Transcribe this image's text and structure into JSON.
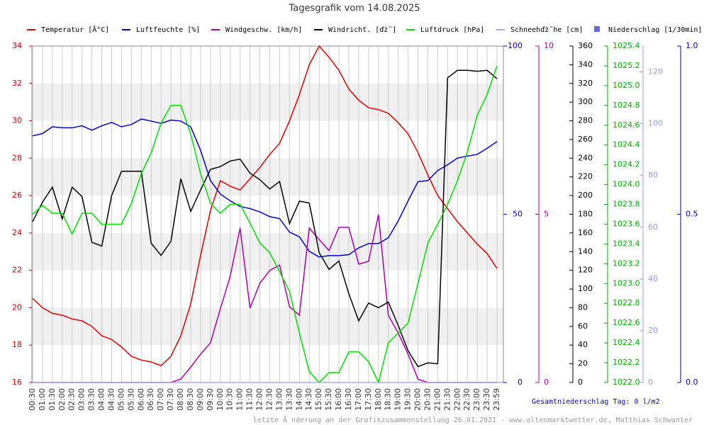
{
  "chart_data": {
    "type": "line",
    "title": "Tagesgrafik vom 14.08.2025",
    "categories": [
      "00:30",
      "01:00",
      "01:30",
      "02:00",
      "02:30",
      "03:00",
      "03:30",
      "04:00",
      "04:30",
      "05:00",
      "05:30",
      "06:00",
      "06:30",
      "07:00",
      "07:30",
      "08:00",
      "08:30",
      "09:00",
      "09:30",
      "10:00",
      "10:30",
      "11:00",
      "11:30",
      "12:00",
      "12:30",
      "13:00",
      "13:30",
      "14:00",
      "14:30",
      "15:00",
      "15:30",
      "16:00",
      "16:30",
      "17:00",
      "17:30",
      "18:00",
      "18:30",
      "19:00",
      "19:30",
      "20:00",
      "20:30",
      "21:00",
      "21:30",
      "22:00",
      "22:30",
      "23:00",
      "23:30",
      "23:59"
    ],
    "grid": true,
    "axes": [
      {
        "color": "#cc0000",
        "lim": [
          16,
          34
        ],
        "ticks": [
          16,
          18,
          20,
          22,
          24,
          26,
          28,
          30,
          32,
          34
        ]
      },
      {
        "color": "#0000cc",
        "lim": [
          0,
          100
        ],
        "ticks": [
          0,
          50,
          100
        ]
      },
      {
        "color": "#aa00aa",
        "lim": [
          0,
          10
        ],
        "ticks": [
          0,
          5,
          10
        ]
      },
      {
        "color": "#000000",
        "lim": [
          0,
          360
        ],
        "ticks": [
          0,
          20,
          40,
          60,
          80,
          100,
          120,
          140,
          160,
          180,
          200,
          220,
          240,
          260,
          280,
          300,
          320,
          340,
          360
        ]
      },
      {
        "color": "#00aa00",
        "lim": [
          1022,
          1025.4
        ],
        "ticks": [
          {
            "value": 1022,
            "label": "1022.0"
          },
          1022.2,
          1022.4,
          1022.6,
          1022.8,
          {
            "value": 1023,
            "label": "1023.0"
          },
          1023.2,
          1023.4,
          1023.6,
          1023.8,
          {
            "value": 1024,
            "label": "1024.0"
          },
          1024.2,
          1024.4,
          1024.6,
          1024.8,
          {
            "value": 1025,
            "label": "1025.0"
          },
          1025.2,
          1025.4
        ]
      },
      {
        "color": "#9999ee",
        "lim": [
          0,
          130
        ],
        "ticks": [
          0,
          20,
          40,
          60,
          80,
          100,
          120
        ]
      },
      {
        "color": "#0000aa",
        "lim": [
          0,
          1
        ],
        "ticks": [
          {
            "value": 0,
            "label": "0.0"
          },
          0.5,
          {
            "value": 1,
            "label": "1.0"
          }
        ]
      }
    ],
    "series": [
      {
        "name": "Temperatur [Â°C]",
        "color": "#dd0000",
        "axis": 0,
        "values": [
          20.5,
          20.0,
          19.7,
          19.6,
          19.4,
          19.3,
          19.0,
          18.5,
          18.3,
          17.9,
          17.4,
          17.2,
          17.1,
          16.9,
          17.4,
          18.5,
          20.2,
          22.8,
          25.2,
          26.8,
          26.5,
          26.3,
          26.9,
          27.5,
          28.2,
          28.8,
          30.0,
          31.4,
          33.0,
          34.0,
          33.4,
          32.7,
          31.7,
          31.1,
          30.7,
          30.6,
          30.4,
          29.9,
          29.3,
          28.3,
          27.1,
          26.0,
          25.3,
          24.6,
          24.0,
          23.4,
          22.9,
          22.1
        ]
      },
      {
        "name": "Luftfeuchte [%]",
        "color": "#0000cc",
        "axis": 1,
        "values": [
          73.3,
          74,
          76,
          75.7,
          75.7,
          76.3,
          75,
          76.3,
          77.3,
          76,
          76.7,
          78.3,
          77.7,
          77,
          78,
          77.7,
          76,
          69,
          60,
          56,
          54,
          52.3,
          51.7,
          50.7,
          49.3,
          48.7,
          44.7,
          43.3,
          39,
          37.3,
          37.7,
          37.7,
          38,
          40,
          41.3,
          41.3,
          43,
          48,
          54,
          59.7,
          60,
          63,
          64.7,
          66.7,
          67.3,
          67.8,
          69.6,
          71.6
        ]
      },
      {
        "name": "Windgeschw. [km/h]",
        "color": "#aa00aa",
        "axis": 2,
        "values": [
          0,
          0,
          0,
          0,
          0,
          0,
          0,
          0,
          0,
          0,
          0,
          0,
          0,
          0,
          0,
          0.1,
          0.46,
          0.84,
          1.18,
          2.19,
          3.16,
          4.59,
          2.21,
          2.95,
          3.33,
          3.49,
          2.25,
          2.0,
          4.59,
          4.25,
          3.92,
          4.61,
          4.61,
          3.52,
          3.6,
          4.99,
          2.0,
          1.47,
          0.84,
          0.1,
          0,
          0,
          0,
          0,
          0,
          0,
          0,
          0
        ]
      },
      {
        "name": "Windricht. [ďż˝]",
        "color": "#000000",
        "axis": 3,
        "values": [
          172,
          193,
          209,
          175,
          209,
          199,
          150,
          146,
          200,
          226,
          226,
          226,
          149,
          136,
          151,
          218,
          183,
          206,
          228,
          231,
          237,
          239,
          224,
          217,
          207,
          215,
          170,
          194,
          192,
          139,
          121,
          130,
          95,
          66,
          85,
          80,
          86,
          61,
          34,
          17,
          21,
          20,
          326,
          334,
          334,
          333,
          334,
          325
        ]
      },
      {
        "name": "Luftdruck [hPa]",
        "color": "#00dd00",
        "axis": 4,
        "values": [
          1023.7,
          1023.79,
          1023.71,
          1023.71,
          1023.5,
          1023.71,
          1023.71,
          1023.6,
          1023.6,
          1023.6,
          1023.81,
          1024.11,
          1024.32,
          1024.62,
          1024.8,
          1024.8,
          1024.51,
          1024.11,
          1023.81,
          1023.71,
          1023.8,
          1023.8,
          1023.61,
          1023.41,
          1023.31,
          1023.12,
          1022.92,
          1022.5,
          1022.11,
          1022.0,
          1022.1,
          1022.1,
          1022.31,
          1022.31,
          1022.21,
          1022.0,
          1022.4,
          1022.5,
          1022.6,
          1023.0,
          1023.41,
          1023.6,
          1023.8,
          1024.04,
          1024.33,
          1024.7,
          1024.91,
          1025.2
        ]
      },
      {
        "name": "Schneehďż˝he [cm]",
        "color": "#aaaaee",
        "axis": 5,
        "values": [
          0,
          0,
          0,
          0,
          0,
          0,
          0,
          0,
          0,
          0,
          0,
          0,
          0,
          0,
          0,
          0,
          0,
          0,
          0,
          0,
          0,
          0,
          0,
          0,
          0,
          0,
          0,
          0,
          0,
          0,
          0,
          0,
          0,
          0,
          0,
          0,
          0,
          0,
          0,
          0,
          0,
          0,
          0,
          0,
          0,
          0,
          0,
          0
        ]
      },
      {
        "name": "Niederschlag [1/30min]",
        "color": "#6666dd",
        "axis": 6,
        "values": [
          0,
          0,
          0,
          0,
          0,
          0,
          0,
          0,
          0,
          0,
          0,
          0,
          0,
          0,
          0,
          0,
          0,
          0,
          0,
          0,
          0,
          0,
          0,
          0,
          0,
          0,
          0,
          0,
          0,
          0,
          0,
          0,
          0,
          0,
          0,
          0,
          0,
          0,
          0,
          0,
          0,
          0,
          0,
          0,
          0,
          0,
          0,
          0
        ]
      }
    ],
    "total_note": "Gesamtniederschlag Tag: 0 l/m2",
    "footer": "letzte Ă nderung an der Grafikzusammenstellung 26.01.2021 - www.altenmarktwetter.de, Matthias Schwanter"
  }
}
